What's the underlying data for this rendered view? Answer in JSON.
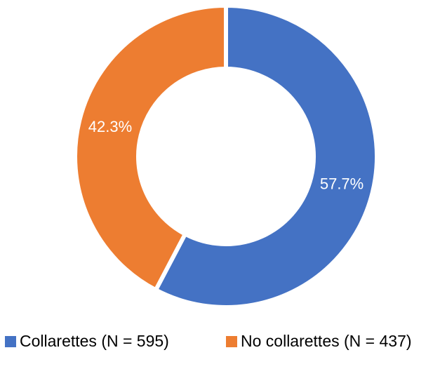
{
  "chart_data": {
    "type": "donut",
    "categories": [
      "Collarettes (N = 595)",
      "No collarettes (N = 437)"
    ],
    "values": [
      57.7,
      42.3
    ],
    "value_labels": [
      "57.7%",
      "42.3%"
    ],
    "colors": [
      "#4472c4",
      "#ed7d31"
    ],
    "legend": "bottom"
  }
}
